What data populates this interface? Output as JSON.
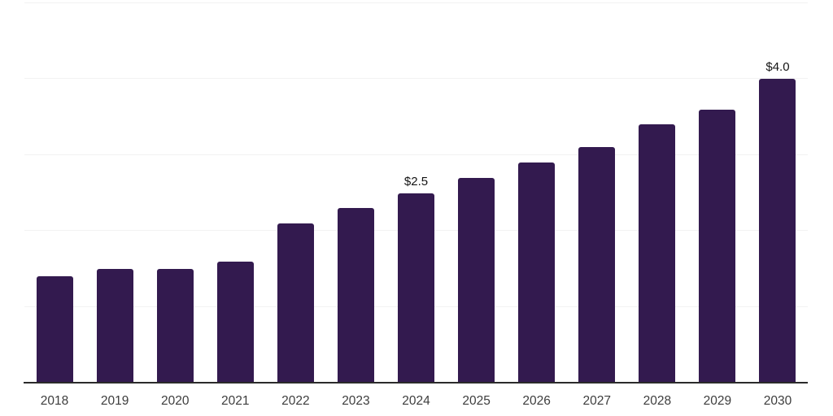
{
  "chart_data": {
    "type": "bar",
    "title": "",
    "xlabel": "",
    "ylabel": "",
    "categories": [
      "2018",
      "2019",
      "2020",
      "2021",
      "2022",
      "2023",
      "2024",
      "2025",
      "2026",
      "2027",
      "2028",
      "2029",
      "2030"
    ],
    "values": [
      1.4,
      1.5,
      1.5,
      1.6,
      2.1,
      2.3,
      2.5,
      2.7,
      2.9,
      3.1,
      3.4,
      3.6,
      4.0
    ],
    "data_labels": [
      "",
      "",
      "",
      "",
      "",
      "",
      "$2.5",
      "",
      "",
      "",
      "",
      "",
      "$4.0"
    ],
    "ylim": [
      0,
      5
    ],
    "gridline_values": [
      1,
      2,
      3,
      4,
      5
    ],
    "grid": true,
    "legend": false,
    "colors": {
      "bar": "#331a4f",
      "gridline": "#f2f2f2",
      "axis": "#2b2b2b",
      "tick_label": "#3d3d3d",
      "data_label": "#141414",
      "background": "#ffffff"
    }
  }
}
